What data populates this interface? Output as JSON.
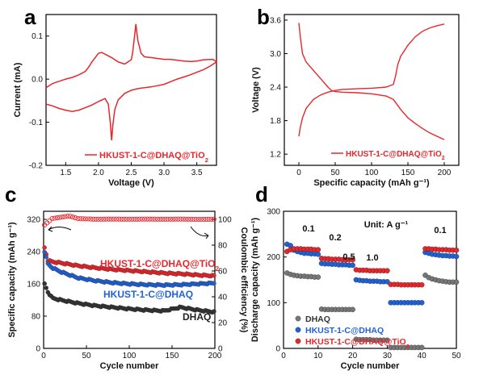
{
  "panels": {
    "a": {
      "label": "a"
    },
    "b": {
      "label": "b"
    },
    "c": {
      "label": "c"
    },
    "d": {
      "label": "d"
    }
  },
  "chart_data": [
    {
      "panel": "a",
      "type": "line",
      "xlabel": "Voltage (V)",
      "ylabel": "Current (mA)",
      "xlim": [
        1.2,
        3.8
      ],
      "ylim": [
        -0.2,
        0.15
      ],
      "xticks": [
        "1.5",
        "2.0",
        "2.5",
        "3.0",
        "3.5"
      ],
      "yticks": [
        "-0.2",
        "-0.1",
        "0.0",
        "0.1"
      ],
      "legend": "top-right",
      "color": "#e8262b",
      "series": [
        {
          "name": "HKUST-1-C@DHAQ@TiO2",
          "x": [
            1.2,
            1.3,
            1.4,
            1.5,
            1.6,
            1.7,
            1.8,
            1.9,
            2.0,
            2.1,
            2.15,
            2.18,
            2.2,
            2.22,
            2.25,
            2.3,
            2.4,
            2.5,
            2.6,
            2.7,
            2.8,
            2.9,
            3.0,
            3.1,
            3.2,
            3.3,
            3.4,
            3.5,
            3.6,
            3.7,
            3.8,
            3.75,
            3.6,
            3.5,
            3.4,
            3.3,
            3.2,
            3.1,
            3.0,
            2.9,
            2.8,
            2.7,
            2.65,
            2.6,
            2.57,
            2.55,
            2.52,
            2.5,
            2.45,
            2.4,
            2.3,
            2.2,
            2.1,
            2.05,
            2.0,
            1.95,
            1.9,
            1.85,
            1.8,
            1.7,
            1.6,
            1.5,
            1.4,
            1.3,
            1.2
          ],
          "y": [
            -0.058,
            -0.062,
            -0.068,
            -0.072,
            -0.075,
            -0.072,
            -0.066,
            -0.06,
            -0.052,
            -0.045,
            -0.058,
            -0.1,
            -0.142,
            -0.105,
            -0.07,
            -0.048,
            -0.033,
            -0.026,
            -0.022,
            -0.02,
            -0.018,
            -0.015,
            -0.012,
            -0.006,
            0.0,
            0.005,
            0.01,
            0.016,
            0.022,
            0.03,
            0.04,
            0.046,
            0.045,
            0.042,
            0.041,
            0.042,
            0.044,
            0.046,
            0.046,
            0.048,
            0.05,
            0.052,
            0.06,
            0.09,
            0.128,
            0.1,
            0.06,
            0.045,
            0.04,
            0.035,
            0.04,
            0.05,
            0.058,
            0.062,
            0.06,
            0.05,
            0.04,
            0.028,
            0.018,
            0.01,
            0.004,
            0.0,
            -0.005,
            -0.01,
            -0.02
          ]
        }
      ]
    },
    {
      "panel": "b",
      "type": "line",
      "xlabel": "Specific capacity (mAh g⁻¹)",
      "ylabel": "Voltage (V)",
      "xlim": [
        -20,
        220
      ],
      "ylim": [
        1.0,
        3.7
      ],
      "xticks": [
        "0",
        "50",
        "100",
        "150",
        "200"
      ],
      "yticks": [
        "1.2",
        "1.8",
        "2.4",
        "3.0",
        "3.6"
      ],
      "legend": "bottom-right",
      "color": "#e8262b",
      "series": [
        {
          "name": "HKUST-1-C@DHAQ@TiO2 discharge",
          "x": [
            0,
            2,
            5,
            10,
            20,
            30,
            40,
            45,
            50,
            60,
            80,
            100,
            120,
            130,
            140,
            150,
            160,
            170,
            180,
            190,
            200
          ],
          "y": [
            3.55,
            3.3,
            3.0,
            2.85,
            2.7,
            2.55,
            2.4,
            2.34,
            2.32,
            2.31,
            2.3,
            2.28,
            2.24,
            2.18,
            2.0,
            1.85,
            1.75,
            1.66,
            1.58,
            1.52,
            1.46
          ]
        },
        {
          "name": "HKUST-1-C@DHAQ@TiO2 charge",
          "x": [
            0,
            2,
            5,
            10,
            20,
            30,
            40,
            50,
            60,
            80,
            100,
            120,
            130,
            133,
            136,
            140,
            150,
            160,
            170,
            180,
            190,
            200
          ],
          "y": [
            1.52,
            1.68,
            1.85,
            2.02,
            2.18,
            2.26,
            2.31,
            2.34,
            2.36,
            2.37,
            2.38,
            2.4,
            2.45,
            2.6,
            2.8,
            2.95,
            3.15,
            3.3,
            3.4,
            3.46,
            3.5,
            3.53
          ]
        }
      ]
    },
    {
      "panel": "c",
      "type": "scatter",
      "xlabel": "Cycle number",
      "ylabel": "Specific capacity (mAh g⁻¹)",
      "y2label": "Coulombic efficiency (%)",
      "xlim": [
        0,
        200
      ],
      "ylim": [
        0,
        340
      ],
      "y2lim": [
        0,
        106.25
      ],
      "xticks": [
        "0",
        "50",
        "100",
        "150",
        "200"
      ],
      "yticks": [
        "0",
        "80",
        "160",
        "240",
        "320"
      ],
      "y2ticks": [
        "0",
        "20",
        "40",
        "60",
        "80",
        "100"
      ],
      "series": [
        {
          "name": "HKUST-1-C@DHAQ@TiO2",
          "color": "#e8262b",
          "x": [
            1,
            5,
            10,
            20,
            40,
            60,
            80,
            100,
            120,
            140,
            160,
            180,
            200
          ],
          "y": [
            250,
            218,
            215,
            212,
            205,
            200,
            196,
            193,
            190,
            187,
            185,
            182,
            180
          ]
        },
        {
          "name": "HKUST-1-C@DHAQ",
          "color": "#1f62d8",
          "x": [
            1,
            5,
            10,
            20,
            40,
            60,
            80,
            100,
            120,
            140,
            160,
            180,
            200
          ],
          "y": [
            240,
            210,
            200,
            190,
            175,
            168,
            163,
            160,
            158,
            157,
            158,
            160,
            162
          ]
        },
        {
          "name": "DHAQ",
          "color": "#333333",
          "x": [
            1,
            5,
            10,
            20,
            40,
            60,
            80,
            100,
            120,
            140,
            160,
            180,
            200
          ],
          "y": [
            160,
            140,
            125,
            120,
            112,
            106,
            102,
            98,
            95,
            93,
            102,
            95,
            90
          ]
        },
        {
          "name": "HKUST-1-C@DHAQ@TiO2 CE",
          "color": "#e8262b",
          "x": [
            1,
            10,
            20,
            30,
            40,
            60,
            80,
            100,
            120,
            140,
            160,
            180,
            200
          ],
          "y": [
            95,
            100,
            101,
            102,
            100,
            99.5,
            99.6,
            99.5,
            99.6,
            99.5,
            99.6,
            99.4,
            99.5
          ]
        }
      ],
      "annotations": [
        "HKUST-1-C@DHAQ@TiO2",
        "HKUST-1-C@DHAQ",
        "DHAQ"
      ]
    },
    {
      "panel": "d",
      "type": "scatter",
      "xlabel": "Cycle number",
      "ylabel": "Discharge capacity (mAh g⁻¹)",
      "xlim": [
        0,
        50
      ],
      "ylim": [
        0,
        300
      ],
      "xticks": [
        "0",
        "10",
        "20",
        "30",
        "40",
        "50"
      ],
      "yticks": [
        "0",
        "100",
        "200",
        "300"
      ],
      "unit_label": "Unit: A g⁻¹",
      "rate_labels": [
        "0.1",
        "0.2",
        "0.5",
        "1.0",
        "0.1"
      ],
      "legend": "bottom-left",
      "series": [
        {
          "name": "DHAQ",
          "color": "#777777",
          "x": [
            1,
            2,
            3,
            4,
            5,
            6,
            7,
            8,
            9,
            10,
            11,
            12,
            13,
            14,
            15,
            16,
            17,
            18,
            19,
            20,
            21,
            22,
            23,
            24,
            25,
            26,
            27,
            28,
            29,
            30,
            31,
            32,
            33,
            34,
            35,
            36,
            37,
            38,
            39,
            40,
            41,
            42,
            43,
            44,
            45,
            46,
            47,
            48,
            49,
            50
          ],
          "y": [
            165,
            162,
            160,
            159,
            158,
            158,
            157,
            157,
            156,
            156,
            86,
            85,
            85,
            85,
            85,
            85,
            85,
            85,
            85,
            85,
            20,
            19,
            19,
            19,
            19,
            18,
            18,
            18,
            18,
            18,
            2,
            2,
            2,
            2,
            2,
            2,
            2,
            2,
            2,
            2,
            160,
            155,
            152,
            150,
            148,
            147,
            146,
            145,
            145,
            145
          ]
        },
        {
          "name": "HKUST-1-C@DHAQ",
          "color": "#1f62d8",
          "x": [
            1,
            2,
            3,
            4,
            5,
            6,
            7,
            8,
            9,
            10,
            11,
            12,
            13,
            14,
            15,
            16,
            17,
            18,
            19,
            20,
            21,
            22,
            23,
            24,
            25,
            26,
            27,
            28,
            29,
            30,
            31,
            32,
            33,
            34,
            35,
            36,
            37,
            38,
            39,
            40,
            41,
            42,
            43,
            44,
            45,
            46,
            47,
            48,
            49,
            50
          ],
          "y": [
            228,
            225,
            215,
            212,
            210,
            208,
            208,
            207,
            207,
            206,
            186,
            185,
            185,
            184,
            184,
            183,
            183,
            183,
            182,
            182,
            150,
            149,
            148,
            148,
            147,
            147,
            147,
            146,
            146,
            146,
            100,
            100,
            100,
            100,
            100,
            100,
            100,
            100,
            100,
            100,
            210,
            208,
            206,
            205,
            204,
            203,
            203,
            202,
            202,
            201
          ]
        },
        {
          "name": "HKUST-1-C@DHAQ@TiO2",
          "color": "#e8262b",
          "x": [
            1,
            2,
            3,
            4,
            5,
            6,
            7,
            8,
            9,
            10,
            11,
            12,
            13,
            14,
            15,
            16,
            17,
            18,
            19,
            20,
            21,
            22,
            23,
            24,
            25,
            26,
            27,
            28,
            29,
            30,
            31,
            32,
            33,
            34,
            35,
            36,
            37,
            38,
            39,
            40,
            41,
            42,
            43,
            44,
            45,
            46,
            47,
            48,
            49,
            50
          ],
          "y": [
            212,
            216,
            218,
            218,
            218,
            217,
            217,
            217,
            216,
            216,
            197,
            196,
            196,
            195,
            195,
            195,
            194,
            194,
            194,
            194,
            172,
            171,
            171,
            171,
            170,
            170,
            170,
            170,
            170,
            170,
            140,
            140,
            140,
            139,
            139,
            139,
            139,
            139,
            139,
            139,
            218,
            218,
            217,
            217,
            216,
            216,
            216,
            215,
            215,
            215
          ]
        }
      ]
    }
  ]
}
